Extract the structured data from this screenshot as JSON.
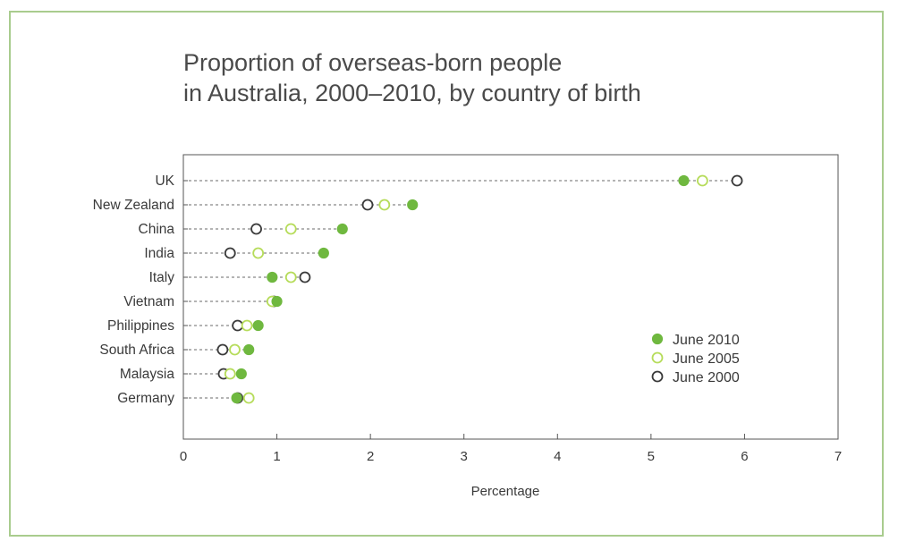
{
  "chart_data": {
    "type": "scatter",
    "title_lines": [
      "Proportion of overseas-born people",
      "in Australia, 2000–2010, by country of birth"
    ],
    "xlabel": "Percentage",
    "ylabel": "",
    "xlim": [
      0,
      7
    ],
    "x_ticks": [
      "0",
      "1",
      "2",
      "3",
      "4",
      "5",
      "6",
      "7"
    ],
    "categories": [
      "UK",
      "New Zealand",
      "China",
      "India",
      "Italy",
      "Vietnam",
      "Philippines",
      "South Africa",
      "Malaysia",
      "Germany"
    ],
    "series": [
      {
        "name": "June 2010",
        "color": "#6fb83f",
        "marker": "filled-circle",
        "values": [
          5.35,
          2.45,
          1.7,
          1.5,
          0.95,
          1.0,
          0.8,
          0.7,
          0.62,
          0.57
        ]
      },
      {
        "name": "June 2005",
        "color": "#b6dc5a",
        "marker": "open-circle",
        "values": [
          5.55,
          2.15,
          1.15,
          0.8,
          1.15,
          0.95,
          0.68,
          0.55,
          0.5,
          0.7
        ]
      },
      {
        "name": "June 2000",
        "color": "#3a3a3a",
        "marker": "open-circle",
        "values": [
          5.92,
          1.97,
          0.78,
          0.5,
          1.3,
          0.97,
          0.58,
          0.42,
          0.43,
          0.58
        ]
      }
    ],
    "legend_position": "right-middle",
    "grid": false,
    "guide_lines": "dashed"
  }
}
